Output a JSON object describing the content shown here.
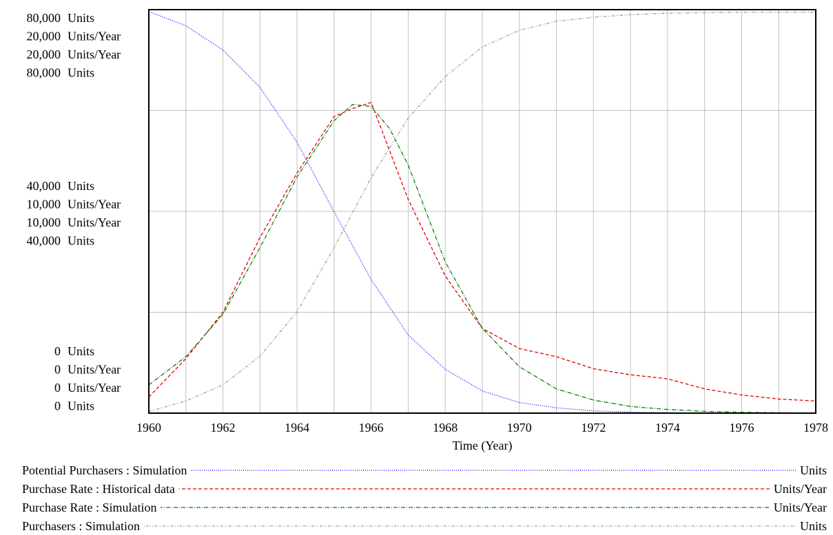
{
  "chart_data": {
    "type": "line",
    "xlabel": "Time (Year)",
    "xlim": [
      1960,
      1978
    ],
    "x_ticks": [
      "1960",
      "1962",
      "1964",
      "1966",
      "1968",
      "1970",
      "1972",
      "1974",
      "1976",
      "1978"
    ],
    "y_axis_blocks": [
      {
        "label": "80,000 Units"
      },
      {
        "label": "20,000 Units/Year"
      },
      {
        "label": "20,000 Units/Year"
      },
      {
        "label": "80,000 Units"
      },
      {
        "label": "40,000 Units"
      },
      {
        "label": "10,000 Units/Year"
      },
      {
        "label": "10,000 Units/Year"
      },
      {
        "label": "40,000 Units"
      },
      {
        "label": "0 Units"
      },
      {
        "label": "0 Units/Year"
      },
      {
        "label": "0 Units/Year"
      },
      {
        "label": "0 Units"
      }
    ],
    "grid": true,
    "legend_position": "bottom",
    "series": [
      {
        "name": "Potential Purchasers : Simulation",
        "units": "Units",
        "ymax": 80000,
        "color": "#0000ff",
        "dash": "1,2",
        "x": [
          1960,
          1961,
          1962,
          1963,
          1964,
          1965,
          1966,
          1967,
          1968,
          1969,
          1970,
          1971,
          1972,
          1973,
          1974,
          1975,
          1976,
          1977,
          1978
        ],
        "y": [
          79600,
          76800,
          72000,
          64600,
          53700,
          39900,
          26500,
          15500,
          8700,
          4400,
          2100,
          1050,
          450,
          200,
          80,
          30,
          10,
          5,
          0
        ]
      },
      {
        "name": "Purchase Rate : Historical data",
        "units": "Units/Year",
        "ymax": 20000,
        "color": "#e00000",
        "dash": "5,3",
        "x": [
          1960,
          1961,
          1962,
          1963,
          1964,
          1965,
          1965.5,
          1966,
          1967,
          1968,
          1969,
          1970,
          1971,
          1972,
          1973,
          1974,
          1975,
          1976,
          1977,
          1978
        ],
        "y": [
          800,
          2700,
          5000,
          8700,
          11900,
          14700,
          15100,
          15400,
          10600,
          6800,
          4200,
          3200,
          2800,
          2200,
          1900,
          1700,
          1200,
          900,
          700,
          600
        ]
      },
      {
        "name": "Purchase Rate : Simulation",
        "units": "Units/Year",
        "ymax": 20000,
        "color": "#008000",
        "dash": "6,2,1,2",
        "x": [
          1960,
          1961,
          1962,
          1963,
          1964,
          1965,
          1965.5,
          1966,
          1966.5,
          1967,
          1968,
          1969,
          1970,
          1971,
          1972,
          1973,
          1974,
          1975,
          1976,
          1977,
          1978
        ],
        "y": [
          1400,
          2800,
          4900,
          8200,
          11700,
          14500,
          15300,
          15200,
          14100,
          12300,
          7500,
          4200,
          2300,
          1200,
          650,
          330,
          180,
          90,
          40,
          20,
          10
        ]
      },
      {
        "name": "Purchasers : Simulation",
        "units": "Units",
        "ymax": 80000,
        "color": "#999999",
        "dash": "4,2,1,2,1,2",
        "x": [
          1960,
          1961,
          1962,
          1963,
          1964,
          1965,
          1966,
          1967,
          1968,
          1969,
          1970,
          1971,
          1972,
          1973,
          1974,
          1975,
          1976,
          1977,
          1978
        ],
        "y": [
          300,
          2400,
          5600,
          11300,
          20100,
          32800,
          46700,
          58500,
          66700,
          72600,
          75900,
          77700,
          78500,
          79000,
          79300,
          79400,
          79500,
          79500,
          79500
        ]
      }
    ]
  }
}
